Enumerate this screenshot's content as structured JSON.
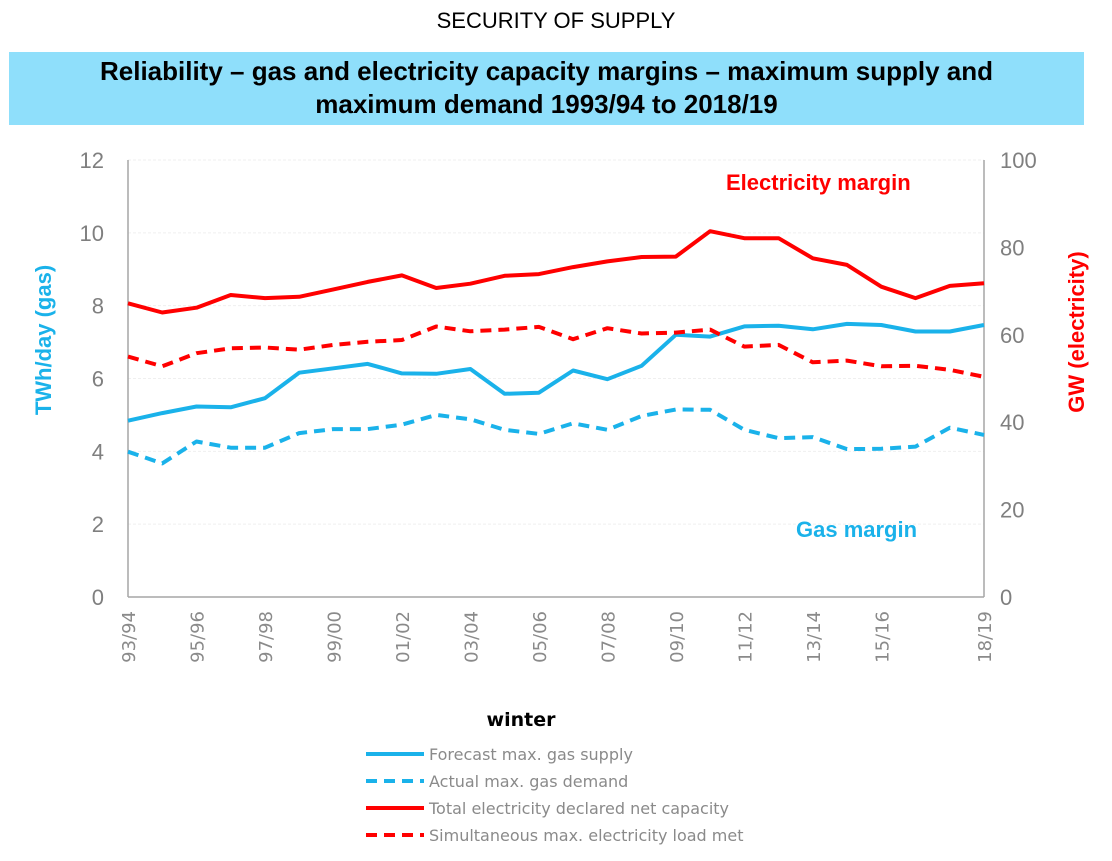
{
  "header": {
    "section_title": "SECURITY OF SUPPLY",
    "banner_title_line1": "Reliability – gas and electricity capacity margins – maximum supply and",
    "banner_title_line2": "maximum demand 1993/94 to 2018/19",
    "banner_color": "#8fdffb"
  },
  "chart_data": {
    "type": "line",
    "title": "Reliability – gas and electricity capacity margins – maximum supply and maximum demand 1993/94 to 2018/19",
    "xlabel": "winter",
    "ylabel_left": "TWh/day (gas)",
    "ylabel_right": "GW (electricity)",
    "ylim_left": [
      0,
      12
    ],
    "ylim_right": [
      0,
      100
    ],
    "yticks_left": [
      "0",
      "2",
      "4",
      "6",
      "8",
      "10",
      "12"
    ],
    "yticks_right": [
      "0",
      "20",
      "40",
      "60",
      "80",
      "100"
    ],
    "grid": true,
    "x": [
      "93/94",
      "94/95",
      "95/96",
      "96/97",
      "97/98",
      "98/99",
      "99/00",
      "00/01",
      "01/02",
      "02/03",
      "03/04",
      "04/05",
      "05/06",
      "06/07",
      "07/08",
      "08/09",
      "09/10",
      "10/11",
      "11/12",
      "12/13",
      "13/14",
      "14/15",
      "15/16",
      "16/17",
      "17/18",
      "18/19"
    ],
    "xtick_labels": [
      "93/94",
      "95/96",
      "97/98",
      "99/00",
      "01/02",
      "03/04",
      "05/06",
      "07/08",
      "09/10",
      "11/12",
      "13/14",
      "15/16",
      "18/19"
    ],
    "annotations": [
      "Electricity margin",
      "Gas margin"
    ],
    "legend_position": "bottom",
    "series": [
      {
        "name": "Forecast max. gas supply",
        "axis": "left",
        "color": "#1ab2ea",
        "style": "solid",
        "values": [
          4.84,
          5.05,
          5.23,
          5.21,
          5.46,
          6.16,
          6.28,
          6.4,
          6.14,
          6.13,
          6.26,
          5.58,
          5.61,
          6.22,
          5.98,
          6.35,
          7.2,
          7.15,
          7.43,
          7.45,
          7.35,
          7.5,
          7.47,
          7.29,
          7.29,
          7.47
        ]
      },
      {
        "name": "Actual max. gas demand",
        "axis": "left",
        "color": "#1ab2ea",
        "style": "dashed",
        "values": [
          3.99,
          3.67,
          4.27,
          4.1,
          4.1,
          4.5,
          4.61,
          4.61,
          4.73,
          5.0,
          4.88,
          4.59,
          4.48,
          4.77,
          4.59,
          4.97,
          5.15,
          5.14,
          4.59,
          4.36,
          4.39,
          4.06,
          4.07,
          4.13,
          4.65,
          4.45
        ]
      },
      {
        "name": "Total electricity declared net capacity",
        "axis": "right",
        "color": "#ff0000",
        "style": "solid",
        "values": [
          67.2,
          65.1,
          66.2,
          69.1,
          68.4,
          68.7,
          70.4,
          72.1,
          73.6,
          70.7,
          71.7,
          73.5,
          73.9,
          75.5,
          76.8,
          77.8,
          77.9,
          83.7,
          82.1,
          82.1,
          77.5,
          76.0,
          71.0,
          68.4,
          71.2,
          71.8
        ]
      },
      {
        "name": "Simultaneous max. electricity load met",
        "axis": "right",
        "color": "#ff0000",
        "style": "dashed",
        "values": [
          55.0,
          52.8,
          55.8,
          56.9,
          57.1,
          56.6,
          57.7,
          58.4,
          58.8,
          61.9,
          60.8,
          61.2,
          61.8,
          59.0,
          61.5,
          60.3,
          60.5,
          61.2,
          57.3,
          57.7,
          53.7,
          54.1,
          52.8,
          52.9,
          52.0,
          50.4
        ]
      }
    ]
  }
}
